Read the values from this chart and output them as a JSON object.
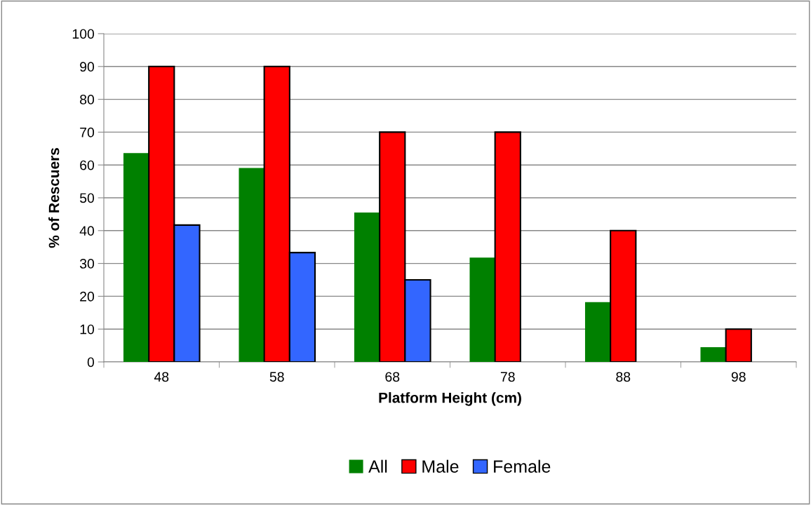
{
  "chart_data": {
    "type": "bar",
    "xlabel": "Platform Height (cm)",
    "ylabel": "% of Rescuers",
    "categories": [
      "48",
      "58",
      "68",
      "78",
      "88",
      "98"
    ],
    "series": [
      {
        "name": "All",
        "color": "#008000",
        "values": [
          63.6,
          59.1,
          45.5,
          31.8,
          18.2,
          4.5
        ]
      },
      {
        "name": "Male",
        "color": "#ff0000",
        "values": [
          90,
          90,
          70,
          70,
          40,
          10
        ]
      },
      {
        "name": "Female",
        "color": "#3366ff",
        "values": [
          41.7,
          33.3,
          25,
          null,
          null,
          null
        ]
      }
    ],
    "ylim": [
      0,
      100
    ],
    "yticks": [
      0,
      10,
      20,
      30,
      40,
      50,
      60,
      70,
      80,
      90,
      100
    ],
    "grid": "y",
    "legend": "bottom"
  }
}
